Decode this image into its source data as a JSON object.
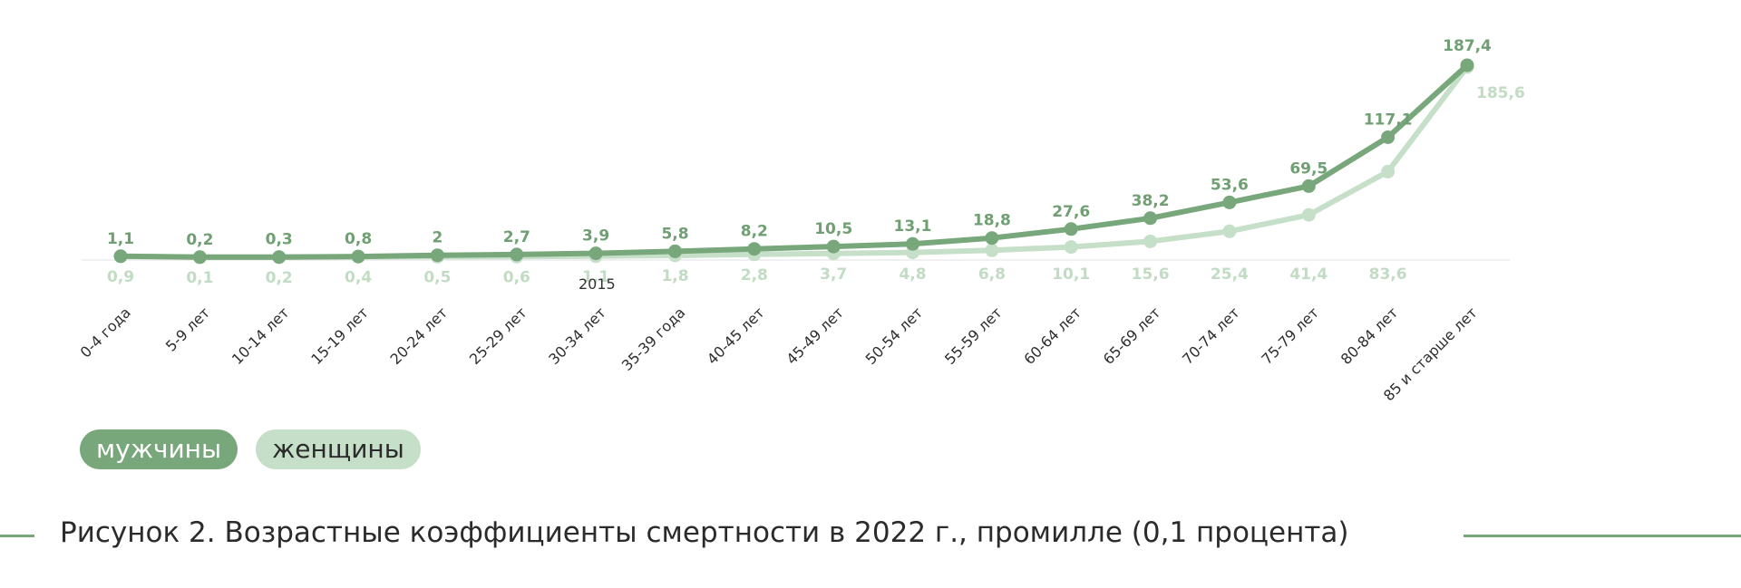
{
  "chart_data": {
    "type": "line",
    "categories": [
      "0-4 года",
      "5-9 лет",
      "10-14 лет",
      "15-19 лет",
      "20-24 лет",
      "25-29 лет",
      "30-34 лет",
      "35-39 года",
      "40-45 лет",
      "45-49 лет",
      "50-54 лет",
      "55-59 лет",
      "60-64 лет",
      "65-69 лет",
      "70-74 лет",
      "75-79 лет",
      "80-84 лет",
      "85 и старше лет"
    ],
    "series": [
      {
        "name": "мужчины",
        "color": "#77a77a",
        "values": [
          1.1,
          0.2,
          0.3,
          0.8,
          2,
          2.7,
          3.9,
          5.8,
          8.2,
          10.5,
          13.1,
          18.8,
          27.6,
          38.2,
          53.6,
          69.5,
          117.1,
          187.4
        ],
        "labels": [
          "1,1",
          "0,2",
          "0,3",
          "0,8",
          "2",
          "2,7",
          "3,9",
          "5,8",
          "8,2",
          "10,5",
          "13,1",
          "18,8",
          "27,6",
          "38,2",
          "53,6",
          "69,5",
          "117,1",
          "187,4"
        ]
      },
      {
        "name": "женщины",
        "color": "#c6dfc8",
        "values": [
          0.9,
          0.1,
          0.2,
          0.4,
          0.5,
          0.6,
          1.1,
          1.8,
          2.8,
          3.7,
          4.8,
          6.8,
          10.1,
          15.6,
          25.4,
          41.4,
          83.6,
          185.6
        ],
        "labels": [
          "0,9",
          "0,1",
          "0,2",
          "0,4",
          "0,5",
          "0,6",
          "1,1",
          "1,8",
          "2,8",
          "3,7",
          "4,8",
          "6,8",
          "10,1",
          "15,6",
          "25,4",
          "41,4",
          "83,6",
          "185,6"
        ]
      }
    ],
    "annotations": [
      "2015"
    ],
    "ylim": [
      0,
      187.4
    ],
    "grid": false,
    "legend_placement": "bottom-left"
  },
  "legend": {
    "men_label": "мужчины",
    "women_label": "женщины"
  },
  "caption": {
    "text": "Рисунок 2. Возрастные коэффициенты смертности в 2022 г., промилле (0,1 процента)"
  }
}
